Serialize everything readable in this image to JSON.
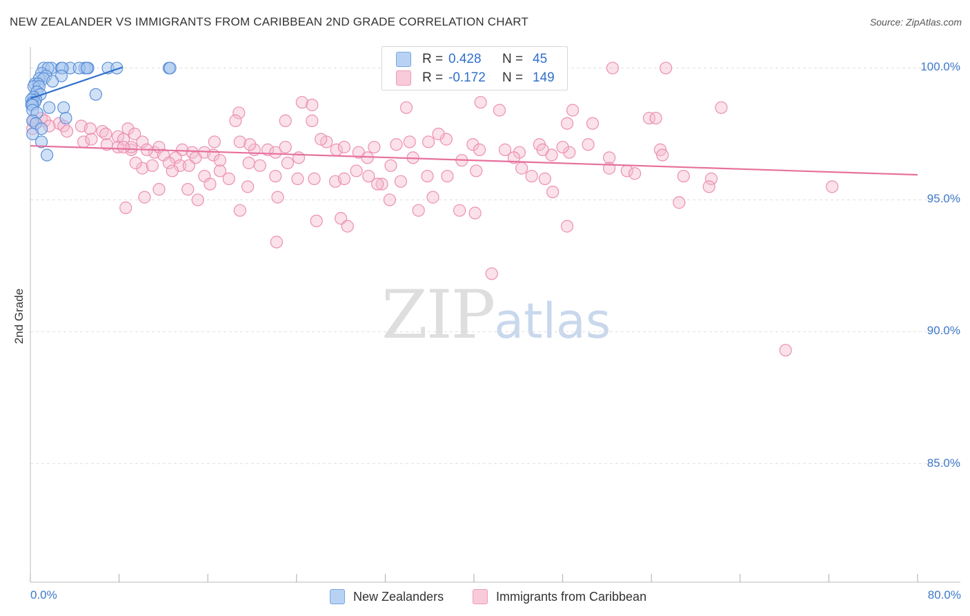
{
  "header": {
    "title": "NEW ZEALANDER VS IMMIGRANTS FROM CARIBBEAN 2ND GRADE CORRELATION CHART",
    "source": "Source: ZipAtlas.com"
  },
  "watermark": {
    "zip": "ZIP",
    "atlas": "atlas"
  },
  "colors": {
    "blue_fill": "#a9c8ee",
    "blue_stroke": "#5b8fd8",
    "blue_line": "#2f6fcc",
    "pink_fill": "#f5bcd0",
    "pink_stroke": "#ec8fb0",
    "pink_line": "#e6709c",
    "tick_text": "#3d78c9",
    "grid": "#dddddd"
  },
  "legend_top": {
    "rows": [
      {
        "r_label": "R =",
        "r_value": "0.428",
        "n_label": "N =",
        "n_value": "45"
      },
      {
        "r_label": "R =",
        "r_value": "-0.172",
        "n_label": "N =",
        "n_value": "149"
      }
    ]
  },
  "chart_data": {
    "type": "scatter",
    "title": "NEW ZEALANDER VS IMMIGRANTS FROM CARIBBEAN 2ND GRADE CORRELATION CHART",
    "xlabel": "",
    "ylabel": "2nd Grade",
    "xlim": [
      0,
      80
    ],
    "ylim": [
      80.5,
      100.8
    ],
    "x_ticks": [
      0,
      8,
      16,
      24,
      32,
      40,
      48,
      56,
      64,
      72,
      80
    ],
    "x_tick_labels": {
      "left": "0.0%",
      "right": "80.0%"
    },
    "y_ticks": [
      85,
      90,
      95,
      100
    ],
    "y_tick_labels": [
      "85.0%",
      "90.0%",
      "95.0%",
      "100.0%"
    ],
    "legend_placement": "bottom",
    "series": [
      {
        "name": "New Zealanders",
        "color": "blue",
        "r": 0.428,
        "n": 45,
        "trend": {
          "x0": 0.05,
          "y0": 98.85,
          "x1": 8.3,
          "y1": 100.03
        },
        "points": [
          [
            1.2,
            100.0
          ],
          [
            1.9,
            100.0
          ],
          [
            2.8,
            100.0
          ],
          [
            3.6,
            100.0
          ],
          [
            4.9,
            100.0
          ],
          [
            5.2,
            100.0
          ],
          [
            7.0,
            100.0
          ],
          [
            7.8,
            100.0
          ],
          [
            12.5,
            100.0
          ],
          [
            12.6,
            100.0
          ],
          [
            1.6,
            100.0
          ],
          [
            2.9,
            100.0
          ],
          [
            4.4,
            100.0
          ],
          [
            5.1,
            100.0
          ],
          [
            1.0,
            99.8
          ],
          [
            1.4,
            99.7
          ],
          [
            2.8,
            99.7
          ],
          [
            0.8,
            99.6
          ],
          [
            1.2,
            99.6
          ],
          [
            2.0,
            99.5
          ],
          [
            0.4,
            99.4
          ],
          [
            0.7,
            99.4
          ],
          [
            0.3,
            99.3
          ],
          [
            0.8,
            99.3
          ],
          [
            0.6,
            99.1
          ],
          [
            0.9,
            99.0
          ],
          [
            5.9,
            99.0
          ],
          [
            0.3,
            98.9
          ],
          [
            0.5,
            98.8
          ],
          [
            0.1,
            98.8
          ],
          [
            0.2,
            98.7
          ],
          [
            0.4,
            98.7
          ],
          [
            0.1,
            98.6
          ],
          [
            0.2,
            98.6
          ],
          [
            1.7,
            98.5
          ],
          [
            3.0,
            98.5
          ],
          [
            0.2,
            98.4
          ],
          [
            0.6,
            98.3
          ],
          [
            3.2,
            98.1
          ],
          [
            0.2,
            98.0
          ],
          [
            0.5,
            97.9
          ],
          [
            1.0,
            97.7
          ],
          [
            0.2,
            97.5
          ],
          [
            1.0,
            97.2
          ],
          [
            1.5,
            96.7
          ]
        ]
      },
      {
        "name": "Immigrants from Caribbean",
        "color": "pink",
        "r": -0.172,
        "n": 149,
        "trend": {
          "x0": 0.0,
          "y0": 97.05,
          "x1": 80.0,
          "y1": 95.95
        },
        "points": [
          [
            52.5,
            100.0
          ],
          [
            57.3,
            100.0
          ],
          [
            62.3,
            98.5
          ],
          [
            40.6,
            98.7
          ],
          [
            24.5,
            98.7
          ],
          [
            25.4,
            98.6
          ],
          [
            33.9,
            98.5
          ],
          [
            42.3,
            98.4
          ],
          [
            48.9,
            98.4
          ],
          [
            18.8,
            98.3
          ],
          [
            55.8,
            98.1
          ],
          [
            56.4,
            98.1
          ],
          [
            18.5,
            98.0
          ],
          [
            23.0,
            98.0
          ],
          [
            25.4,
            98.0
          ],
          [
            50.7,
            97.9
          ],
          [
            48.4,
            97.9
          ],
          [
            0.3,
            98.0
          ],
          [
            1.0,
            98.1
          ],
          [
            0.5,
            97.9
          ],
          [
            1.3,
            98.0
          ],
          [
            2.6,
            97.9
          ],
          [
            3.0,
            97.8
          ],
          [
            4.6,
            97.8
          ],
          [
            6.5,
            97.6
          ],
          [
            1.7,
            97.8
          ],
          [
            3.3,
            97.6
          ],
          [
            5.4,
            97.7
          ],
          [
            6.8,
            97.5
          ],
          [
            8.8,
            97.7
          ],
          [
            9.4,
            97.5
          ],
          [
            7.9,
            97.4
          ],
          [
            4.8,
            97.2
          ],
          [
            5.5,
            97.3
          ],
          [
            6.9,
            97.1
          ],
          [
            8.4,
            97.3
          ],
          [
            7.9,
            97.0
          ],
          [
            9.1,
            96.9
          ],
          [
            10.1,
            97.2
          ],
          [
            11.2,
            96.8
          ],
          [
            11.6,
            97.0
          ],
          [
            13.7,
            96.9
          ],
          [
            14.6,
            96.8
          ],
          [
            14.9,
            96.6
          ],
          [
            13.1,
            96.6
          ],
          [
            12.0,
            96.7
          ],
          [
            10.5,
            96.9
          ],
          [
            0.2,
            97.7
          ],
          [
            9.1,
            97.0
          ],
          [
            10.1,
            96.2
          ],
          [
            11.0,
            96.3
          ],
          [
            12.5,
            96.4
          ],
          [
            13.5,
            96.3
          ],
          [
            15.7,
            96.8
          ],
          [
            16.5,
            96.7
          ],
          [
            17.1,
            96.5
          ],
          [
            18.9,
            97.2
          ],
          [
            20.2,
            96.9
          ],
          [
            21.4,
            96.9
          ],
          [
            22.1,
            96.8
          ],
          [
            23.0,
            97.0
          ],
          [
            24.2,
            96.6
          ],
          [
            26.7,
            97.2
          ],
          [
            27.6,
            96.9
          ],
          [
            28.3,
            97.0
          ],
          [
            29.6,
            96.8
          ],
          [
            30.4,
            96.6
          ],
          [
            31.0,
            97.0
          ],
          [
            33.0,
            97.1
          ],
          [
            34.2,
            97.2
          ],
          [
            35.9,
            97.2
          ],
          [
            37.5,
            97.3
          ],
          [
            39.9,
            97.1
          ],
          [
            40.5,
            96.9
          ],
          [
            42.8,
            96.9
          ],
          [
            44.1,
            96.8
          ],
          [
            45.9,
            97.1
          ],
          [
            47.0,
            96.7
          ],
          [
            48.6,
            96.8
          ],
          [
            50.3,
            97.1
          ],
          [
            52.2,
            96.6
          ],
          [
            56.8,
            96.9
          ],
          [
            12.8,
            96.1
          ],
          [
            14.3,
            96.3
          ],
          [
            15.7,
            95.9
          ],
          [
            17.1,
            96.1
          ],
          [
            17.9,
            95.8
          ],
          [
            19.7,
            96.4
          ],
          [
            20.7,
            96.3
          ],
          [
            22.1,
            95.9
          ],
          [
            23.2,
            96.4
          ],
          [
            24.1,
            95.8
          ],
          [
            25.6,
            95.8
          ],
          [
            27.5,
            95.7
          ],
          [
            28.3,
            95.8
          ],
          [
            29.4,
            96.1
          ],
          [
            30.5,
            95.9
          ],
          [
            31.7,
            95.6
          ],
          [
            32.5,
            96.3
          ],
          [
            33.4,
            95.7
          ],
          [
            35.8,
            95.9
          ],
          [
            37.6,
            95.9
          ],
          [
            40.2,
            96.1
          ],
          [
            44.3,
            96.2
          ],
          [
            45.2,
            95.9
          ],
          [
            52.2,
            96.2
          ],
          [
            53.8,
            96.1
          ],
          [
            9.5,
            96.4
          ],
          [
            10.3,
            95.1
          ],
          [
            11.6,
            95.4
          ],
          [
            14.2,
            95.4
          ],
          [
            15.1,
            95.0
          ],
          [
            16.2,
            95.6
          ],
          [
            19.6,
            95.5
          ],
          [
            22.3,
            95.1
          ],
          [
            31.3,
            95.6
          ],
          [
            32.4,
            95.0
          ],
          [
            36.3,
            95.1
          ],
          [
            46.4,
            95.8
          ],
          [
            47.1,
            95.3
          ],
          [
            8.6,
            94.7
          ],
          [
            18.9,
            94.6
          ],
          [
            25.8,
            94.2
          ],
          [
            28.0,
            94.3
          ],
          [
            28.6,
            94.0
          ],
          [
            35.0,
            94.6
          ],
          [
            38.7,
            94.6
          ],
          [
            40.1,
            94.5
          ],
          [
            48.4,
            94.0
          ],
          [
            58.9,
            95.9
          ],
          [
            61.4,
            95.8
          ],
          [
            61.2,
            95.5
          ],
          [
            58.5,
            94.9
          ],
          [
            72.3,
            95.5
          ],
          [
            22.2,
            93.4
          ],
          [
            41.6,
            92.2
          ],
          [
            68.1,
            89.3
          ],
          [
            8.4,
            97.0
          ],
          [
            16.6,
            97.2
          ],
          [
            26.2,
            97.3
          ],
          [
            34.5,
            96.6
          ],
          [
            38.9,
            96.5
          ],
          [
            43.6,
            96.6
          ],
          [
            46.2,
            96.9
          ],
          [
            54.5,
            96.0
          ],
          [
            57.0,
            96.7
          ],
          [
            48.0,
            97.0
          ],
          [
            36.8,
            97.5
          ],
          [
            19.8,
            97.1
          ]
        ]
      }
    ]
  },
  "axes": {
    "y_axis_label": "2nd Grade"
  },
  "legend_bottom": {
    "items": [
      {
        "label": "New Zealanders"
      },
      {
        "label": "Immigrants from Caribbean"
      }
    ]
  }
}
